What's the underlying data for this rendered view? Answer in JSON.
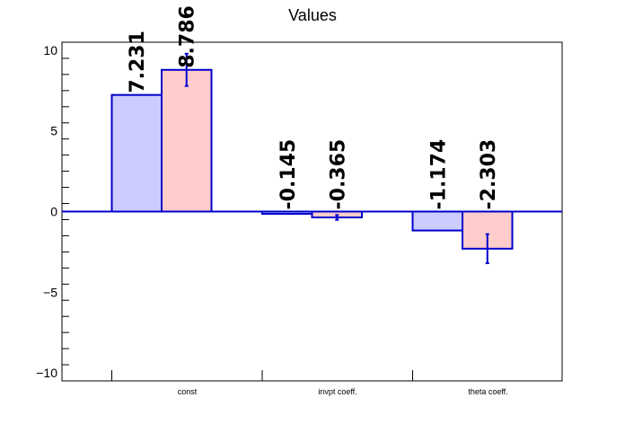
{
  "chart_data": {
    "type": "bar",
    "title": "Values",
    "xlabel": "",
    "ylabel": "",
    "categories": [
      "const",
      "invpt coeff.",
      "theta coeff."
    ],
    "ylim": [
      -10.5,
      10.5
    ],
    "yticks": [
      -10,
      -5,
      0,
      5,
      10
    ],
    "ytick_labels": [
      "−10",
      "−5",
      "0",
      "5",
      "10"
    ],
    "grid": false,
    "series": [
      {
        "values": [
          7.231,
          -0.145,
          -1.174
        ],
        "labels": [
          "7.231",
          "-0.145",
          "-1.174"
        ],
        "errors": [
          null,
          null,
          null
        ],
        "fill": "#ccccff",
        "stroke": "#0000cc"
      },
      {
        "values": [
          8.786,
          -0.365,
          -2.303
        ],
        "labels": [
          "8.786",
          "-0.365",
          "-2.303"
        ],
        "errors": [
          1.0,
          0.15,
          0.9
        ],
        "fill": "#ffcccc",
        "stroke": "#0000cc"
      }
    ],
    "colors": {
      "axis": "#000000",
      "zero_line": "#0000cc",
      "error_bar": "#0000cc"
    }
  }
}
